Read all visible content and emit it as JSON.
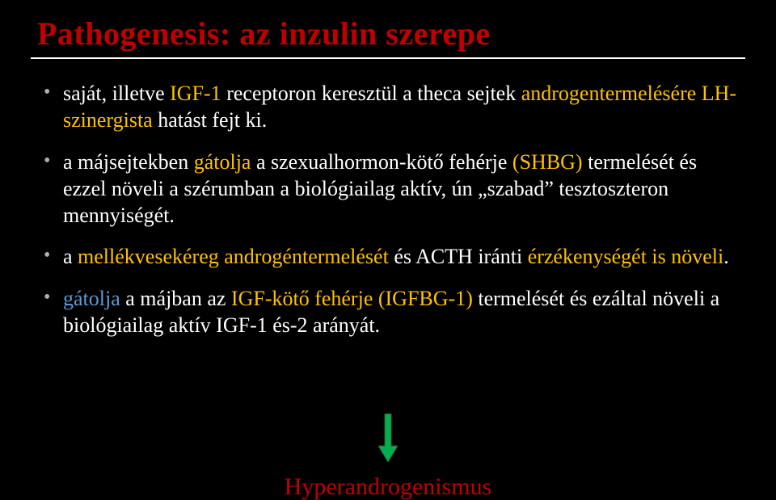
{
  "title": "Pathogenesis: az inzulin szerepe",
  "bullets": {
    "b1": {
      "pre": "saját, illetve ",
      "hl1": "IGF-1",
      "mid1": " receptoron keresztül a theca sejtek ",
      "hl2": "androgentermelésére LH-szinergista",
      "post": " hatást fejt ki."
    },
    "b2": {
      "pre": "a májsejtekben ",
      "hl1": "gátolja",
      "mid1": " a szexualhormon-kötő fehérje ",
      "hl2": "(SHBG)",
      "mid2": " termelését és ezzel növeli a szérumban a biológiailag aktív, ún „szabad” tesztoszteron mennyiségét."
    },
    "b3": {
      "pre": "a ",
      "hl1": "mellékvesekéreg androgéntermelését",
      "mid1": " és ACTH iránti ",
      "hl2": "érzékenységét is növeli",
      "post": "."
    },
    "b4": {
      "hl1": "gátolja",
      "mid1": " a májban az ",
      "hl2": "IGF-kötő fehérje (IGFBG-1)",
      "mid2": " termelését és ezáltal növeli a biológiailag aktív IGF-1 és-2 arányát."
    }
  },
  "arrow": {
    "fill": "#00b050",
    "stroke": "#385723",
    "width": 24,
    "height": 60
  },
  "footer": "Hyperandrogenismus",
  "colors": {
    "bg": "#000000",
    "title": "#c00000",
    "text": "#ffffff",
    "highlight": "#ffc000",
    "highlight_blue": "#5b9bd5",
    "rule": "#ffffff"
  }
}
